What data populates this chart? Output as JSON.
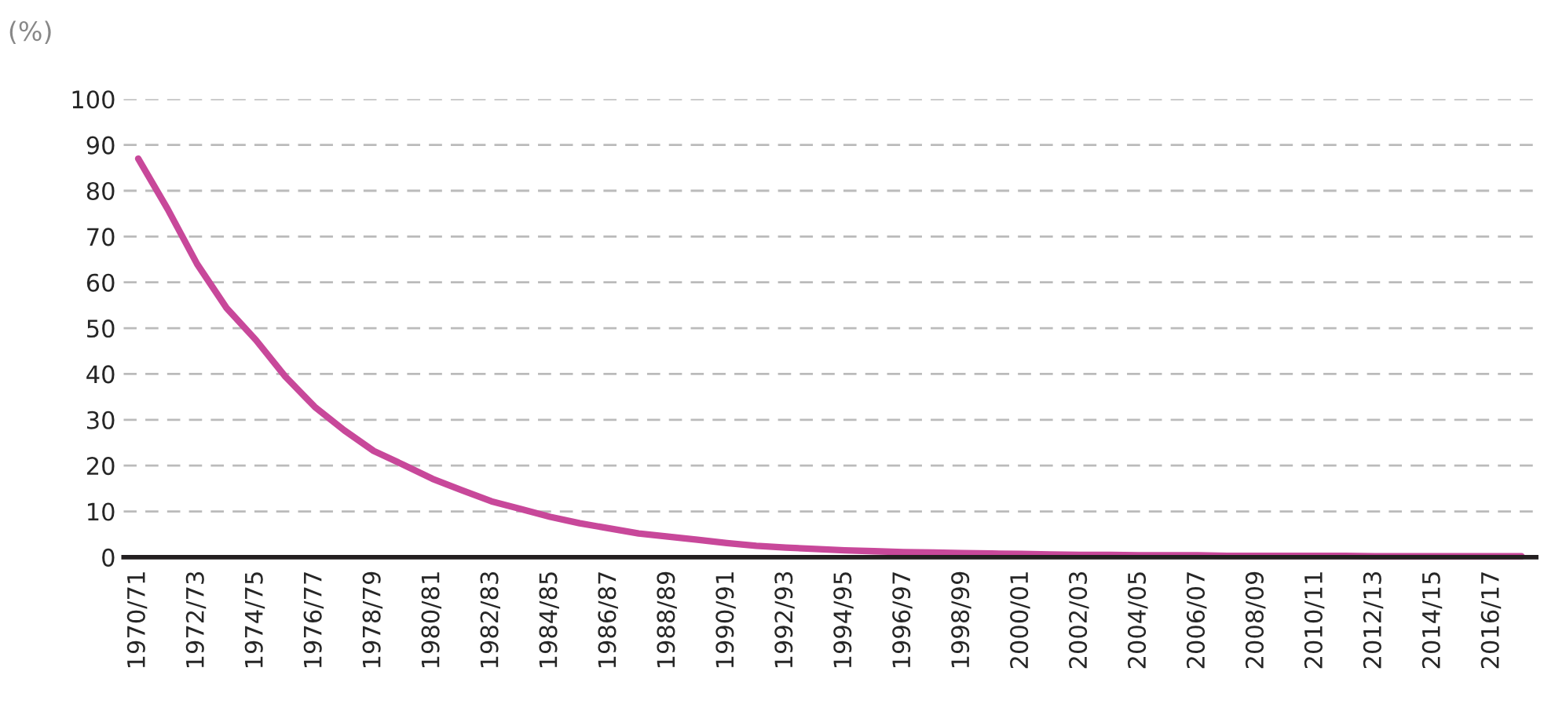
{
  "chart_data": {
    "type": "line",
    "ylabel": "(%)",
    "categories": [
      "1970/71",
      null,
      "1972/73",
      null,
      "1974/75",
      null,
      "1976/77",
      null,
      "1978/79",
      null,
      "1980/81",
      null,
      "1982/83",
      null,
      "1984/85",
      null,
      "1986/87",
      null,
      "1988/89",
      null,
      "1990/91",
      null,
      "1992/93",
      null,
      "1994/95",
      null,
      "1996/97",
      null,
      "1998/99",
      null,
      "2000/01",
      null,
      "2002/03",
      null,
      "2004/05",
      null,
      "2006/07",
      null,
      "2008/09",
      null,
      "2010/11",
      null,
      "2012/13",
      null,
      "2014/15",
      null,
      "2016/17",
      null
    ],
    "series": [
      {
        "color": "#c8489a",
        "values": [
          87,
          76,
          64,
          54.4,
          47.4,
          39.4,
          32.8,
          27.7,
          23.2,
          20.2,
          17.1,
          14.6,
          12.2,
          10.5,
          8.8,
          7.4,
          6.3,
          5.2,
          4.5,
          3.8,
          3.1,
          2.5,
          2.1,
          1.8,
          1.5,
          1.3,
          1.1,
          1.0,
          0.9,
          0.8,
          0.7,
          0.6,
          0.5,
          0.5,
          0.4,
          0.4,
          0.4,
          0.3,
          0.3,
          0.3,
          0.3,
          0.3,
          0.2,
          0.2,
          0.2,
          0.2,
          0.2,
          0.2
        ]
      }
    ],
    "ylim": [
      0,
      100
    ],
    "yticks": [
      0,
      10,
      20,
      30,
      40,
      50,
      60,
      70,
      80,
      90,
      100
    ],
    "grid": "y",
    "line_style": "solid",
    "marker": "none"
  }
}
